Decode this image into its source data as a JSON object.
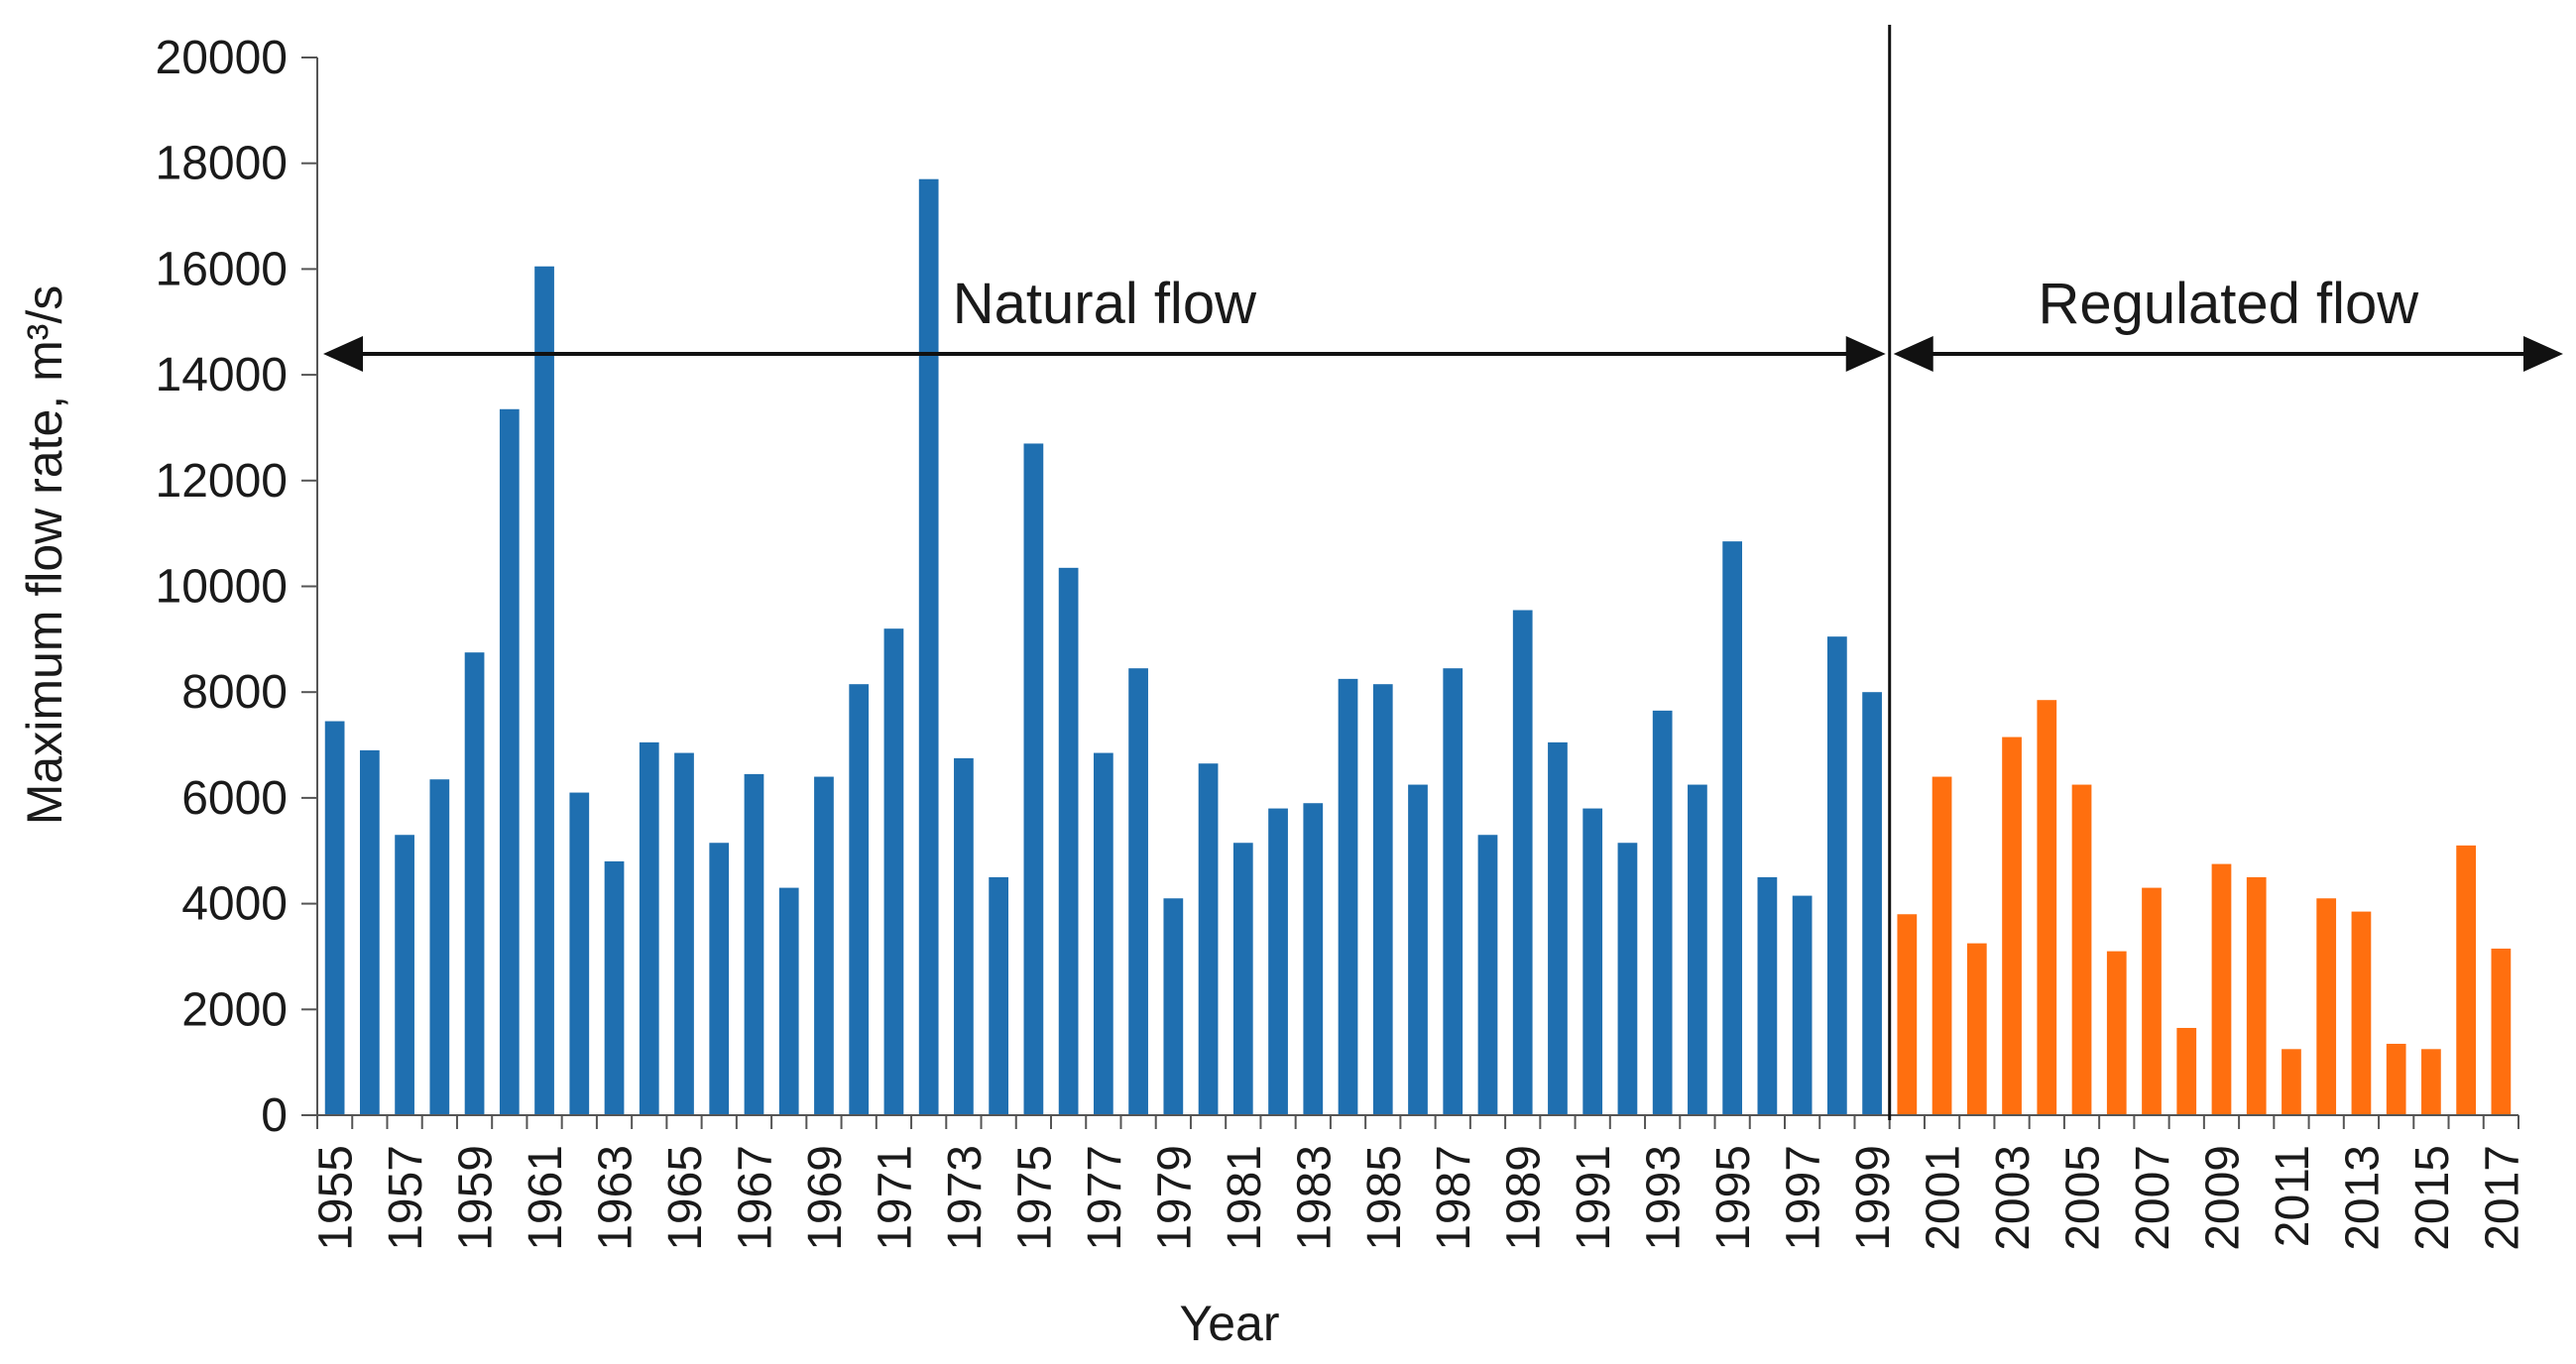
{
  "chart_data": {
    "type": "bar",
    "title": "",
    "xlabel": "Year",
    "ylabel": "Maximum flow rate, m³/s",
    "ylim": [
      0,
      20000
    ],
    "yticks": [
      0,
      2000,
      4000,
      6000,
      8000,
      10000,
      12000,
      14000,
      16000,
      18000,
      20000
    ],
    "grid": false,
    "legend": "none",
    "series_colors": {
      "natural": "#1f6fb0",
      "regulated": "#ff6f0f"
    },
    "categories": [
      1955,
      1956,
      1957,
      1958,
      1959,
      1960,
      1961,
      1962,
      1963,
      1964,
      1965,
      1966,
      1967,
      1968,
      1969,
      1970,
      1971,
      1972,
      1973,
      1974,
      1975,
      1976,
      1977,
      1978,
      1979,
      1980,
      1981,
      1982,
      1983,
      1984,
      1985,
      1986,
      1987,
      1988,
      1989,
      1990,
      1991,
      1992,
      1993,
      1994,
      1995,
      1996,
      1997,
      1998,
      1999,
      2000,
      2001,
      2002,
      2003,
      2004,
      2005,
      2006,
      2007,
      2008,
      2009,
      2010,
      2011,
      2012,
      2013,
      2014,
      2015,
      2016,
      2017
    ],
    "tick_labels": [
      "1955",
      "1957",
      "1959",
      "1961",
      "1963",
      "1965",
      "1967",
      "1969",
      "1971",
      "1973",
      "1975",
      "1977",
      "1979",
      "1981",
      "1983",
      "1985",
      "1987",
      "1989",
      "1991",
      "1993",
      "1995",
      "1997",
      "1999",
      "2001",
      "2003",
      "2005",
      "2007",
      "2009",
      "2011",
      "2013",
      "2015",
      "2017"
    ],
    "series": [
      {
        "values": [
          7450,
          6900,
          5300,
          6350,
          8750,
          13350,
          16050,
          6100,
          4800,
          7050,
          6850,
          5150,
          6450,
          4300,
          6400,
          8150,
          9200,
          17700,
          6750,
          4500,
          12700,
          10350,
          6850,
          8450,
          4100,
          6650,
          5150,
          5800,
          5900,
          8250,
          8150,
          6250,
          8450,
          5300,
          9550,
          7050,
          5800,
          5150,
          7650,
          6250,
          10850,
          4500,
          4150,
          9050,
          8000,
          3800,
          6400,
          3250,
          7150,
          7850,
          6250,
          3100,
          4300,
          1650,
          4750,
          4500,
          1250,
          4100,
          3850,
          1350,
          1250,
          5100,
          3150
        ],
        "colors_by_period": [
          "natural",
          "natural",
          "natural",
          "natural",
          "natural",
          "natural",
          "natural",
          "natural",
          "natural",
          "natural",
          "natural",
          "natural",
          "natural",
          "natural",
          "natural",
          "natural",
          "natural",
          "natural",
          "natural",
          "natural",
          "natural",
          "natural",
          "natural",
          "natural",
          "natural",
          "natural",
          "natural",
          "natural",
          "natural",
          "natural",
          "natural",
          "natural",
          "natural",
          "natural",
          "natural",
          "natural",
          "natural",
          "natural",
          "natural",
          "natural",
          "natural",
          "natural",
          "natural",
          "natural",
          "natural",
          "regulated",
          "regulated",
          "regulated",
          "regulated",
          "regulated",
          "regulated",
          "regulated",
          "regulated",
          "regulated",
          "regulated",
          "regulated",
          "regulated",
          "regulated",
          "regulated",
          "regulated",
          "regulated",
          "regulated",
          "regulated"
        ]
      }
    ],
    "annotations": [
      {
        "label": "Natural flow",
        "from": 1955,
        "to": 1999
      },
      {
        "label": "Regulated flow",
        "from": 2000,
        "to": 2017
      }
    ],
    "divider_between": [
      1999,
      2000
    ]
  }
}
